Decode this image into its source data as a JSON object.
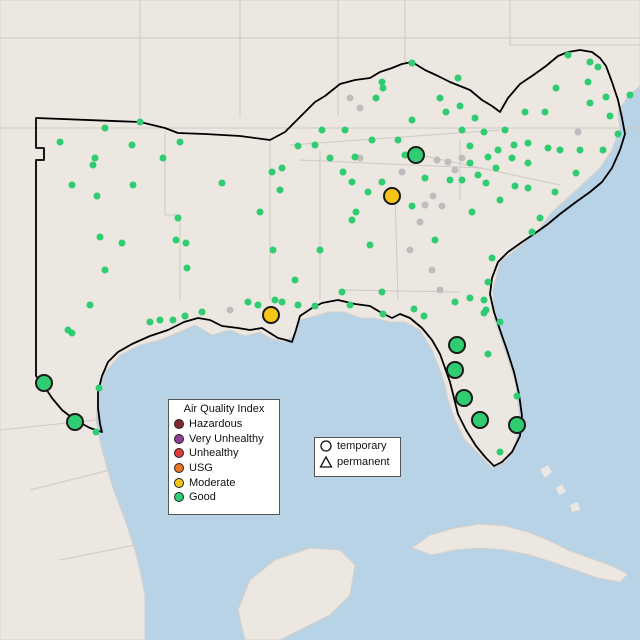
{
  "map": {
    "colors": {
      "water": "#b9d3e6",
      "land": "#ece7e1",
      "border": "#cfc9c3",
      "region_outline": "#000000",
      "inactive_site": "#bdbdbd"
    }
  },
  "legend": {
    "title": "Air Quality Index",
    "categories": [
      {
        "label": "Hazardous",
        "color": "#7e2b2f"
      },
      {
        "label": "Very Unhealthy",
        "color": "#8f3f97"
      },
      {
        "label": "Unhealthy",
        "color": "#e23b3b"
      },
      {
        "label": "USG",
        "color": "#e87722"
      },
      {
        "label": "Moderate",
        "color": "#f5c518"
      },
      {
        "label": "Good",
        "color": "#2fcc71"
      }
    ]
  },
  "site_legend": {
    "items": [
      {
        "label": "temporary",
        "shape": "circle"
      },
      {
        "label": "permanent",
        "shape": "triangle"
      }
    ]
  }
}
